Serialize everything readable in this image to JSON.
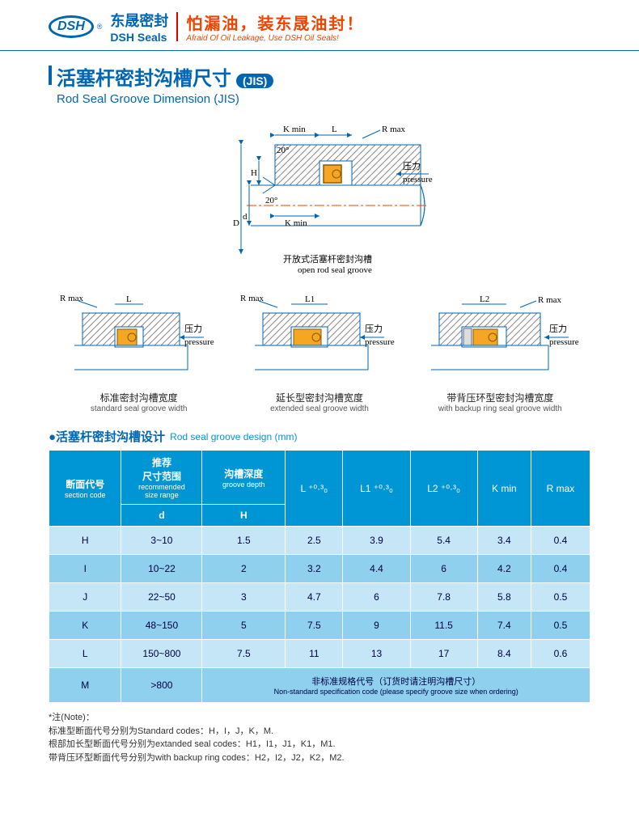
{
  "header": {
    "logo_text": "DSH",
    "reg": "®",
    "company_cn": "东晟密封",
    "company_en": "DSH Seals",
    "slogan_cn": "怕漏油，装东晟油封！",
    "slogan_en": "Afraid Of Oil Leakage, Use DSH Oil Seals!"
  },
  "title": {
    "cn": "活塞杆密封沟槽尺寸",
    "badge": "(JIS)",
    "en": "Rod Seal Groove Dimension (JIS)"
  },
  "diagrams": {
    "main": {
      "labels": {
        "k_min_top": "K min",
        "L": "L",
        "R_max": "R max",
        "angle": "20°",
        "H": "H",
        "D": "D",
        "d": "d",
        "k_min_inner": "K min",
        "pressure_cn": "压力",
        "pressure_en": "pressure"
      },
      "caption_cn": "开放式活塞杆密封沟槽",
      "caption_en": "open rod seal groove",
      "colors": {
        "hatch": "#999",
        "outline": "#0066b3",
        "seal_fill": "#f5a623",
        "seal_stroke": "#8b5a00",
        "centerline": "#e40"
      }
    },
    "row": [
      {
        "top_left": "R max",
        "top_right": "L",
        "pressure_cn": "压力",
        "pressure_en": "pressure",
        "caption_cn": "标准密封沟槽宽度",
        "caption_en": "standard seal groove width"
      },
      {
        "top_left": "R max",
        "top_right": "L1",
        "pressure_cn": "压力",
        "pressure_en": "pressure",
        "caption_cn": "延长型密封沟槽宽度",
        "caption_en": "extended seal groove width"
      },
      {
        "top_left": "L2",
        "top_right": "R max",
        "pressure_cn": "压力",
        "pressure_en": "pressure",
        "caption_cn": "带背压环型密封沟槽宽度",
        "caption_en": "with backup ring seal groove  width"
      }
    ]
  },
  "table": {
    "section_cn": "●活塞杆密封沟槽设计",
    "section_en": "Rod seal groove design  (mm)",
    "headers": {
      "section_code_cn": "断面代号",
      "section_code_en": "section code",
      "size_cn": "推荐\n尺寸范围",
      "size_en": "recommended\nsize range",
      "size_sym": "d",
      "depth_cn": "沟槽深度",
      "depth_en": "groove depth",
      "depth_sym": "H",
      "L": "L ⁺⁰·³₀",
      "L1": "L1 ⁺⁰·³₀",
      "L2": "L2 ⁺⁰·³₀",
      "Kmin": "K min",
      "Rmax": "R max"
    },
    "rows": [
      {
        "code": "H",
        "d": "3~10",
        "H": "1.5",
        "L": "2.5",
        "L1": "3.9",
        "L2": "5.4",
        "K": "3.4",
        "R": "0.4"
      },
      {
        "code": "I",
        "d": "10~22",
        "H": "2",
        "L": "3.2",
        "L1": "4.4",
        "L2": "6",
        "K": "4.2",
        "R": "0.4"
      },
      {
        "code": "J",
        "d": "22~50",
        "H": "3",
        "L": "4.7",
        "L1": "6",
        "L2": "7.8",
        "K": "5.8",
        "R": "0.5"
      },
      {
        "code": "K",
        "d": "48~150",
        "H": "5",
        "L": "7.5",
        "L1": "9",
        "L2": "11.5",
        "K": "7.4",
        "R": "0.5"
      },
      {
        "code": "L",
        "d": "150~800",
        "H": "7.5",
        "L": "11",
        "L1": "13",
        "L2": "17",
        "K": "8.4",
        "R": "0.6"
      }
    ],
    "last_row": {
      "code": "M",
      "d": ">800",
      "note_cn": "非标准规格代号（订货时请注明沟槽尺寸）",
      "note_en": "Non-standard specification code (please specify groove size when ordering)"
    },
    "header_bg": "#0096d6",
    "row_light_bg": "#c5e6f7",
    "row_dark_bg": "#8fd0ee"
  },
  "footnote": {
    "title": "*注(Note)：",
    "line1": "标准型断面代号分别为Standard codes：H，I，J，K，M.",
    "line2": "根部加长型断面代号分别为extanded seal codes：H1，I1，J1，K1，M1.",
    "line3": "带背压环型断面代号分别为with backup ring codes：H2，I2，J2，K2，M2."
  }
}
